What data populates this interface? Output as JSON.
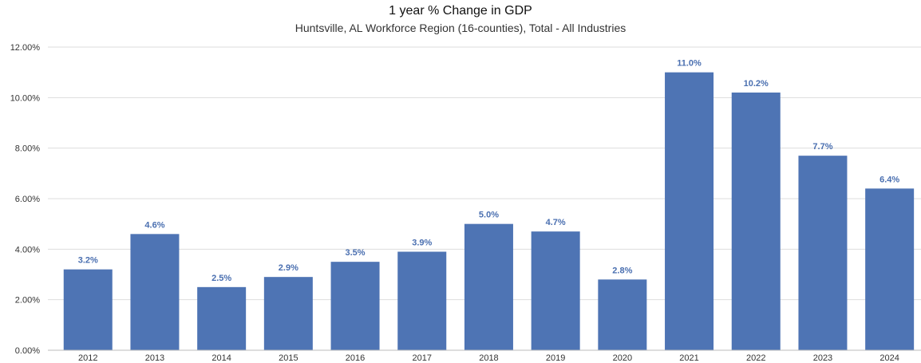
{
  "title": "1 year % Change in GDP",
  "subtitle": "Huntsville, AL Workforce Region (16-counties), Total - All Industries",
  "colors": {
    "bar": "#4e74b4",
    "data_label": "#4a6fb0",
    "grid": "#dddddd",
    "axis": "#bbbbbb"
  },
  "chart_data": {
    "type": "bar",
    "title": "1 year % Change in GDP",
    "subtitle": "Huntsville, AL Workforce Region (16-counties), Total - All Industries",
    "categories": [
      "2012",
      "2013",
      "2014",
      "2015",
      "2016",
      "2017",
      "2018",
      "2019",
      "2020",
      "2021",
      "2022",
      "2023",
      "2024"
    ],
    "values": [
      3.2,
      4.6,
      2.5,
      2.9,
      3.5,
      3.9,
      5.0,
      4.7,
      2.8,
      11.0,
      10.2,
      7.7,
      6.4
    ],
    "data_labels": [
      "3.2%",
      "4.6%",
      "2.5%",
      "2.9%",
      "3.5%",
      "3.9%",
      "5.0%",
      "4.7%",
      "2.8%",
      "11.0%",
      "10.2%",
      "7.7%",
      "6.4%"
    ],
    "yticks": [
      0,
      2,
      4,
      6,
      8,
      10,
      12
    ],
    "ytick_labels": [
      "0.00%",
      "2.00%",
      "4.00%",
      "6.00%",
      "8.00%",
      "10.00%",
      "12.00%"
    ],
    "ylim": [
      0,
      12
    ],
    "xlabel": "",
    "ylabel": "",
    "grid": true,
    "legend": "none"
  }
}
